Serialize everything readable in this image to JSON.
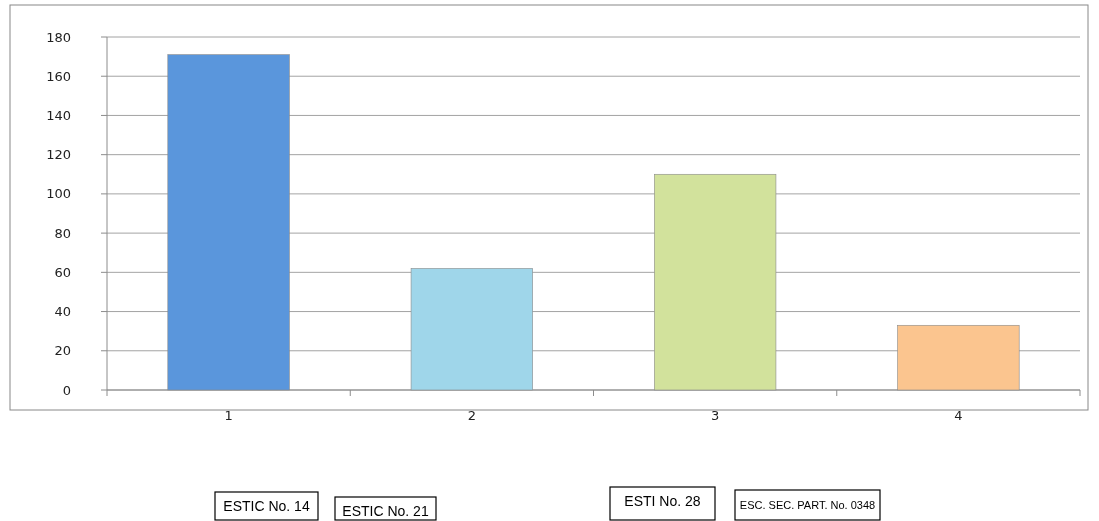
{
  "chart_data": {
    "type": "bar",
    "categories": [
      "1",
      "2",
      "3",
      "4"
    ],
    "values": [
      171,
      62,
      110,
      33
    ],
    "colors": [
      "#5a96dc",
      "#9fd6ea",
      "#d2e29c",
      "#fbc58f"
    ],
    "ylim": [
      0,
      180
    ],
    "yticks": [
      0,
      20,
      40,
      60,
      80,
      100,
      120,
      140,
      160,
      180
    ],
    "grid": "y",
    "annotations": [
      "ESTIC  No. 14",
      "ESTIC  No. 21",
      "ESTI No. 28",
      "ESC. SEC. PART. No. 0348"
    ]
  }
}
